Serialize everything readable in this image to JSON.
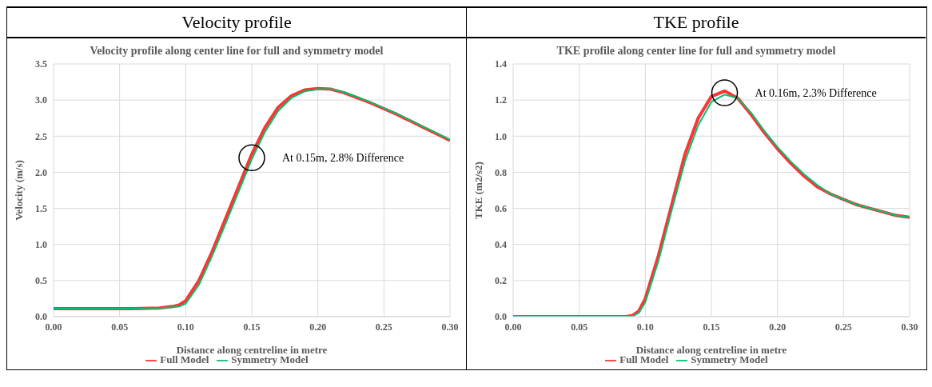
{
  "chart_data": [
    {
      "type": "line",
      "title": "Velocity profile",
      "subtitle": "Velocity profile along center line for full and symmetry model",
      "xlabel": "Distance along centreline in metre",
      "ylabel": "Velocity (m/s)",
      "x": [
        0,
        0.02,
        0.04,
        0.06,
        0.08,
        0.09,
        0.095,
        0.1,
        0.11,
        0.12,
        0.13,
        0.14,
        0.15,
        0.16,
        0.17,
        0.18,
        0.19,
        0.2,
        0.21,
        0.22,
        0.23,
        0.24,
        0.25,
        0.26,
        0.27,
        0.28,
        0.29,
        0.3
      ],
      "series": [
        {
          "name": "Full Model",
          "color": "#ff3333",
          "values": [
            0.11,
            0.11,
            0.11,
            0.11,
            0.12,
            0.14,
            0.16,
            0.22,
            0.5,
            0.9,
            1.35,
            1.8,
            2.25,
            2.62,
            2.9,
            3.06,
            3.14,
            3.16,
            3.15,
            3.1,
            3.03,
            2.96,
            2.88,
            2.8,
            2.71,
            2.62,
            2.53,
            2.44
          ]
        },
        {
          "name": "Symmetry Model",
          "color": "#00c070",
          "values": [
            0.11,
            0.11,
            0.11,
            0.11,
            0.12,
            0.13,
            0.14,
            0.18,
            0.44,
            0.84,
            1.28,
            1.73,
            2.18,
            2.56,
            2.85,
            3.03,
            3.12,
            3.15,
            3.15,
            3.11,
            3.04,
            2.97,
            2.89,
            2.81,
            2.72,
            2.63,
            2.54,
            2.45
          ]
        }
      ],
      "xlim": [
        0,
        0.3
      ],
      "xticks": [
        {
          "value": 0,
          "label": "0.00"
        },
        {
          "value": 0.05,
          "label": "0.05"
        },
        {
          "value": 0.1,
          "label": "0.10"
        },
        {
          "value": 0.15,
          "label": "0.15"
        },
        {
          "value": 0.2,
          "label": "0.20"
        },
        {
          "value": 0.25,
          "label": "0.25"
        },
        {
          "value": 0.3,
          "label": "0.30"
        }
      ],
      "ylim": [
        0,
        3.5
      ],
      "yticks": [
        {
          "value": 0,
          "label": "0.0"
        },
        {
          "value": 0.5,
          "label": "0.5"
        },
        {
          "value": 1,
          "label": "1.0"
        },
        {
          "value": 1.5,
          "label": "1.5"
        },
        {
          "value": 2,
          "label": "2.0"
        },
        {
          "value": 2.5,
          "label": "2.5"
        },
        {
          "value": 3,
          "label": "3.0"
        },
        {
          "value": 3.5,
          "label": "3.5"
        }
      ],
      "annotations": [
        {
          "text": "At 0.15m, 2.8% Difference",
          "x": 0.15,
          "y": 2.2
        }
      ],
      "grid": true,
      "legend": "bottom",
      "marker": "none",
      "line_style": "solid"
    },
    {
      "type": "line",
      "title": "TKE profile",
      "subtitle": "TKE profile along center line for full and symmetry model",
      "xlabel": "Distance along centreline in metre",
      "ylabel": "TKE (m2/s2)",
      "x": [
        0,
        0.05,
        0.085,
        0.09,
        0.095,
        0.1,
        0.11,
        0.12,
        0.13,
        0.14,
        0.15,
        0.16,
        0.17,
        0.18,
        0.19,
        0.2,
        0.21,
        0.22,
        0.23,
        0.24,
        0.25,
        0.26,
        0.27,
        0.28,
        0.29,
        0.3
      ],
      "series": [
        {
          "name": "Full Model",
          "color": "#ff3333",
          "values": [
            0,
            0,
            0,
            0.005,
            0.03,
            0.1,
            0.34,
            0.62,
            0.9,
            1.1,
            1.22,
            1.25,
            1.21,
            1.12,
            1.02,
            0.93,
            0.85,
            0.78,
            0.72,
            0.68,
            0.65,
            0.62,
            0.6,
            0.58,
            0.56,
            0.55
          ]
        },
        {
          "name": "Symmetry Model",
          "color": "#00c070",
          "values": [
            0,
            0,
            0,
            0.002,
            0.02,
            0.08,
            0.31,
            0.59,
            0.86,
            1.06,
            1.19,
            1.23,
            1.21,
            1.13,
            1.03,
            0.94,
            0.86,
            0.79,
            0.73,
            0.68,
            0.65,
            0.62,
            0.6,
            0.58,
            0.56,
            0.55
          ]
        }
      ],
      "xlim": [
        0,
        0.3
      ],
      "xticks": [
        {
          "value": 0,
          "label": "0.00"
        },
        {
          "value": 0.05,
          "label": "0.05"
        },
        {
          "value": 0.1,
          "label": "0.10"
        },
        {
          "value": 0.15,
          "label": "0.15"
        },
        {
          "value": 0.2,
          "label": "0.20"
        },
        {
          "value": 0.25,
          "label": "0.25"
        },
        {
          "value": 0.3,
          "label": "0.30"
        }
      ],
      "ylim": [
        0,
        1.4
      ],
      "yticks": [
        {
          "value": 0,
          "label": "0.0"
        },
        {
          "value": 0.2,
          "label": "0.2"
        },
        {
          "value": 0.4,
          "label": "0.4"
        },
        {
          "value": 0.6,
          "label": "0.6"
        },
        {
          "value": 0.8,
          "label": "0.8"
        },
        {
          "value": 1,
          "label": "1.0"
        },
        {
          "value": 1.2,
          "label": "1.2"
        },
        {
          "value": 1.4,
          "label": "1.4"
        }
      ],
      "annotations": [
        {
          "text": "At 0.16m, 2.3% Difference",
          "x": 0.16,
          "y": 1.24
        }
      ],
      "grid": true,
      "legend": "bottom",
      "marker": "none",
      "line_style": "solid"
    }
  ]
}
